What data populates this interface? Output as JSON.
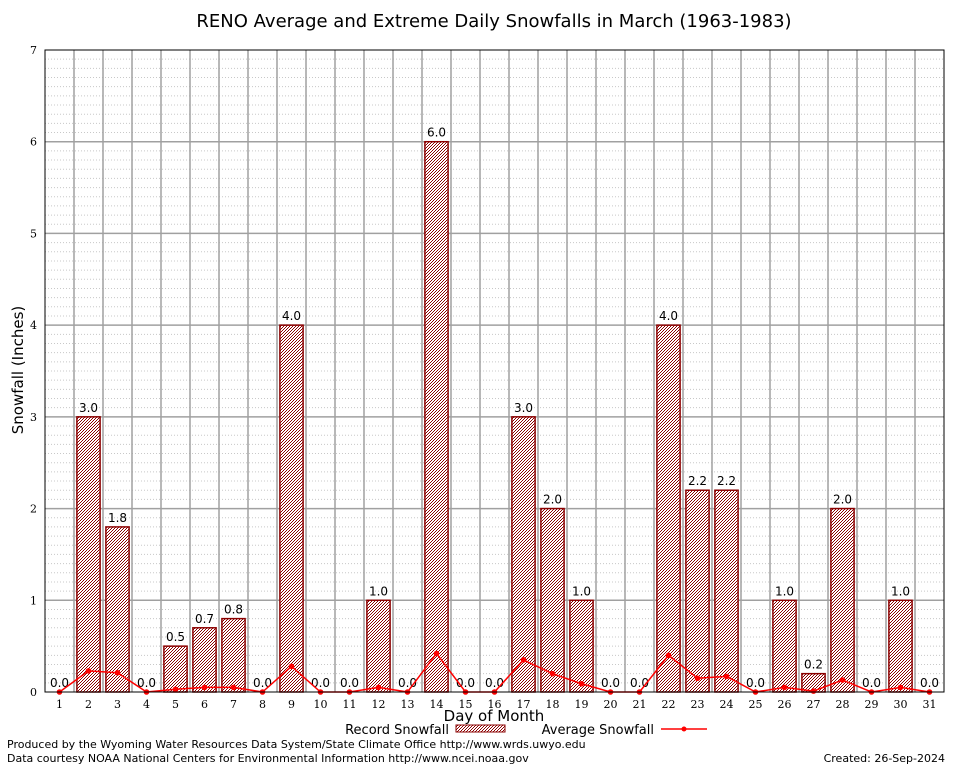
{
  "chart_data": {
    "type": "bar",
    "title": "RENO Average and Extreme Daily Snowfalls in March (1963-1983)",
    "xlabel": "Day of Month",
    "ylabel": "Snowfall (Inches)",
    "ylim": [
      0,
      7
    ],
    "yticks": [
      "0",
      "1",
      "2",
      "3",
      "4",
      "5",
      "6",
      "7"
    ],
    "grid": true,
    "legend_position": "bottom",
    "categories": [
      "1",
      "2",
      "3",
      "4",
      "5",
      "6",
      "7",
      "8",
      "9",
      "10",
      "11",
      "12",
      "13",
      "14",
      "15",
      "16",
      "17",
      "18",
      "19",
      "20",
      "21",
      "22",
      "23",
      "24",
      "25",
      "26",
      "27",
      "28",
      "29",
      "30",
      "31"
    ],
    "series": [
      {
        "name": "Record Snowfall",
        "type": "bar",
        "values": [
          0.0,
          3.0,
          1.8,
          0.0,
          0.5,
          0.7,
          0.8,
          0.0,
          4.0,
          0.0,
          0.0,
          1.0,
          0.0,
          6.0,
          0.0,
          0.0,
          3.0,
          2.0,
          1.0,
          0.0,
          0.0,
          4.0,
          2.2,
          2.2,
          0.0,
          1.0,
          0.2,
          2.0,
          0.0,
          1.0,
          0.0
        ],
        "labels": [
          "0.0",
          "3.0",
          "1.8",
          "0.0",
          "0.5",
          "0.7",
          "0.8",
          "0.0",
          "4.0",
          "0.0",
          "0.0",
          "1.0",
          "0.0",
          "6.0",
          "0.0",
          "0.0",
          "3.0",
          "2.0",
          "1.0",
          "0.0",
          "0.0",
          "4.0",
          "2.2",
          "2.2",
          "0.0",
          "1.0",
          "0.2",
          "2.0",
          "0.0",
          "1.0",
          "0.0"
        ],
        "color": "#8b0000"
      },
      {
        "name": "Average Snowfall",
        "type": "line",
        "values": [
          0.0,
          0.23,
          0.21,
          0.0,
          0.03,
          0.05,
          0.05,
          0.0,
          0.28,
          0.0,
          0.0,
          0.05,
          0.0,
          0.42,
          0.0,
          0.0,
          0.35,
          0.2,
          0.09,
          0.0,
          0.0,
          0.4,
          0.15,
          0.17,
          0.0,
          0.05,
          0.01,
          0.13,
          0.0,
          0.05,
          0.0
        ],
        "color": "#ff0000"
      }
    ]
  },
  "footer": {
    "producer": "Produced by the Wyoming Water Resources Data System/State Climate Office http://www.wrds.uwyo.edu",
    "courtesy": "Data courtesy NOAA National Centers for Environmental Information http://www.ncei.noaa.gov",
    "created": "Created: 26-Sep-2024"
  }
}
